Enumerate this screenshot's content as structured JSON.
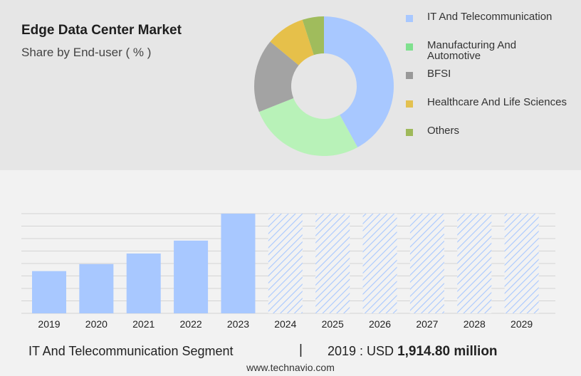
{
  "header": {
    "title": "Edge Data Center Market",
    "subtitle": "Share by End-user ( % )"
  },
  "chart_data": [
    {
      "type": "pie",
      "variant": "donut",
      "legend_position": "right",
      "slices": [
        {
          "name": "IT And Telecommunication",
          "value": 42,
          "color": "#a8c8ff"
        },
        {
          "name": "Manufacturing And Automotive",
          "value": 27,
          "color": "#b8f2b8"
        },
        {
          "name": "BFSI",
          "value": 17,
          "color": "#a3a3a3"
        },
        {
          "name": "Healthcare And Life Sciences",
          "value": 9,
          "color": "#e6c04a"
        },
        {
          "name": "Others",
          "value": 5,
          "color": "#a0bc5c"
        }
      ],
      "legend_swatch_colors": [
        "#a8c8ff",
        "#7fe08e",
        "#999999",
        "#e3c150",
        "#9fb95a"
      ]
    },
    {
      "type": "bar",
      "categories": [
        "2019",
        "2020",
        "2021",
        "2022",
        "2023",
        "2024",
        "2025",
        "2026",
        "2027",
        "2028",
        "2029"
      ],
      "values": [
        36,
        42,
        51,
        62,
        85,
        null,
        null,
        null,
        null,
        null,
        null
      ],
      "forecast_hatched": [
        false,
        false,
        false,
        false,
        false,
        true,
        true,
        true,
        true,
        true,
        true
      ],
      "bar_color": "#a8c8ff",
      "hatch_color": "#a8c8ff",
      "ylim": [
        0,
        85
      ],
      "grid": true,
      "y_tick_labels_shown": false
    }
  ],
  "footer": {
    "segment": "IT And Telecommunication Segment",
    "separator": "|",
    "value_prefix": "2019 : USD",
    "value_bold": "1,914.80 million",
    "url": "www.technavio.com"
  }
}
